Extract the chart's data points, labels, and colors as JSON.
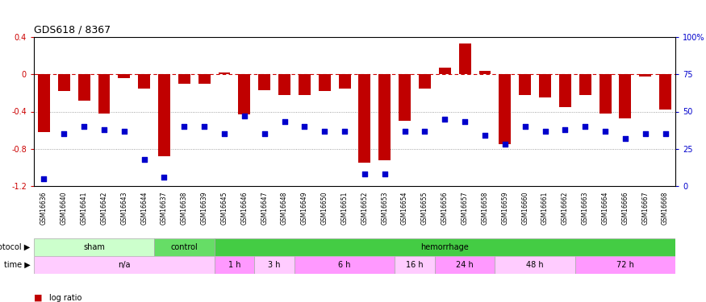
{
  "title": "GDS618 / 8367",
  "samples": [
    "GSM16636",
    "GSM16640",
    "GSM16641",
    "GSM16642",
    "GSM16643",
    "GSM16644",
    "GSM16637",
    "GSM16638",
    "GSM16639",
    "GSM16645",
    "GSM16646",
    "GSM16647",
    "GSM16648",
    "GSM16649",
    "GSM16650",
    "GSM16651",
    "GSM16652",
    "GSM16653",
    "GSM16654",
    "GSM16655",
    "GSM16656",
    "GSM16657",
    "GSM16658",
    "GSM16659",
    "GSM16660",
    "GSM16661",
    "GSM16662",
    "GSM16663",
    "GSM16664",
    "GSM16666",
    "GSM16667",
    "GSM16668"
  ],
  "log_ratio": [
    -0.62,
    -0.18,
    -0.28,
    -0.42,
    -0.04,
    -0.15,
    -0.88,
    -0.1,
    -0.1,
    0.02,
    -0.43,
    -0.17,
    -0.22,
    -0.22,
    -0.18,
    -0.15,
    -0.95,
    -0.92,
    -0.5,
    -0.15,
    0.07,
    0.33,
    0.04,
    -0.75,
    -0.22,
    -0.25,
    -0.35,
    -0.22,
    -0.42,
    -0.47,
    -0.02,
    -0.38
  ],
  "percentile_rank": [
    5,
    35,
    40,
    38,
    37,
    18,
    6,
    40,
    40,
    35,
    47,
    35,
    43,
    40,
    37,
    37,
    8,
    8,
    37,
    37,
    45,
    43,
    34,
    28,
    40,
    37,
    38,
    40,
    37,
    32,
    35,
    35
  ],
  "bar_color": "#c00000",
  "dot_color": "#0000cc",
  "zero_line_color": "#cc0000",
  "bg_color": "#ffffff",
  "protocol_groups": [
    {
      "label": "sham",
      "start": 0,
      "end": 6,
      "color": "#ccffcc"
    },
    {
      "label": "control",
      "start": 6,
      "end": 9,
      "color": "#66dd66"
    },
    {
      "label": "hemorrhage",
      "start": 9,
      "end": 32,
      "color": "#44cc44"
    }
  ],
  "time_groups": [
    {
      "label": "n/a",
      "start": 0,
      "end": 9,
      "color": "#ffccff"
    },
    {
      "label": "1 h",
      "start": 9,
      "end": 11,
      "color": "#ff99ff"
    },
    {
      "label": "3 h",
      "start": 11,
      "end": 13,
      "color": "#ffccff"
    },
    {
      "label": "6 h",
      "start": 13,
      "end": 18,
      "color": "#ff99ff"
    },
    {
      "label": "16 h",
      "start": 18,
      "end": 20,
      "color": "#ffccff"
    },
    {
      "label": "24 h",
      "start": 20,
      "end": 23,
      "color": "#ff99ff"
    },
    {
      "label": "48 h",
      "start": 23,
      "end": 27,
      "color": "#ffccff"
    },
    {
      "label": "72 h",
      "start": 27,
      "end": 32,
      "color": "#ff99ff"
    }
  ],
  "ylim_left": [
    -1.2,
    0.4
  ],
  "ylim_right": [
    0,
    100
  ],
  "yticks_left": [
    -1.2,
    -0.8,
    -0.4,
    0.0,
    0.4
  ],
  "yticks_right": [
    0,
    25,
    50,
    75,
    100
  ],
  "ytick_labels_right": [
    "0",
    "25",
    "50",
    "75",
    "100%"
  ]
}
